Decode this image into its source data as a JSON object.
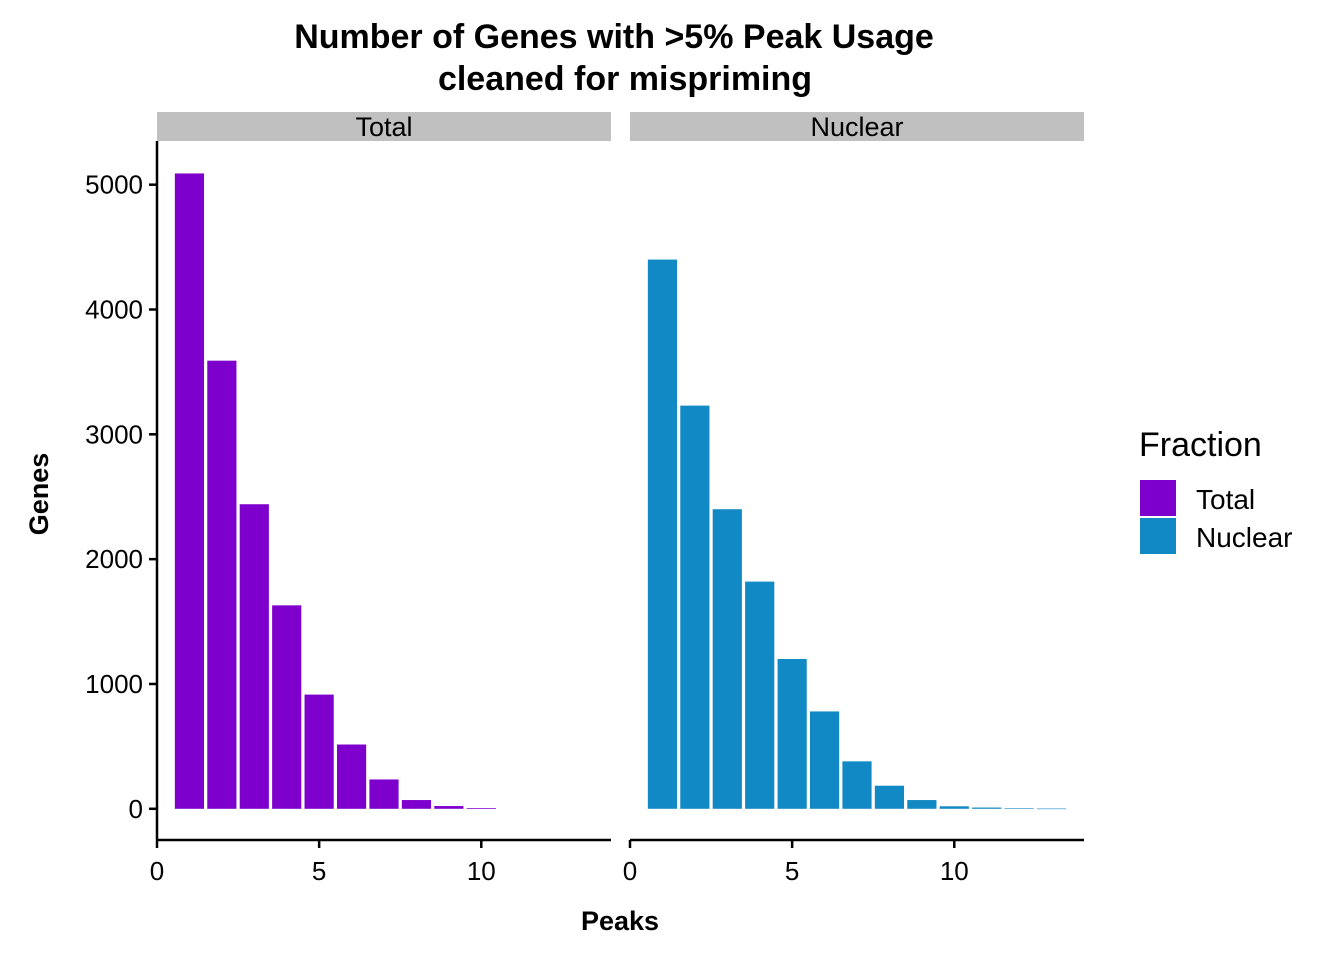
{
  "chart_data": {
    "type": "bar",
    "title": "Number of Genes with >5% Peak Usage",
    "subtitle": "cleaned for mispriming",
    "xlabel": "Peaks",
    "ylabel": "Genes",
    "xlim": [
      0,
      14
    ],
    "ylim": [
      -250,
      5350
    ],
    "xticks": [
      0,
      5,
      10
    ],
    "yticks": [
      0,
      1000,
      2000,
      3000,
      4000,
      5000
    ],
    "grid": false,
    "legend": {
      "title": "Fraction",
      "position": "right",
      "entries": [
        {
          "label": "Total",
          "color": "#7E00CC"
        },
        {
          "label": "Nuclear",
          "color": "#1189C4"
        }
      ]
    },
    "panels": [
      {
        "label": "Total",
        "color": "#7E00CC",
        "x": [
          1,
          2,
          3,
          4,
          5,
          6,
          7,
          8,
          9,
          10
        ],
        "values": [
          5090,
          3590,
          2440,
          1630,
          915,
          515,
          235,
          70,
          22,
          6
        ]
      },
      {
        "label": "Nuclear",
        "color": "#1189C4",
        "x": [
          1,
          2,
          3,
          4,
          5,
          6,
          7,
          8,
          9,
          10,
          11,
          12,
          13
        ],
        "values": [
          4400,
          3230,
          2400,
          1820,
          1200,
          780,
          380,
          185,
          70,
          20,
          10,
          4,
          2
        ]
      }
    ]
  },
  "colors": {
    "strip_background": "#C0C0C0",
    "axis": "#000000",
    "background": "#FFFFFF"
  }
}
